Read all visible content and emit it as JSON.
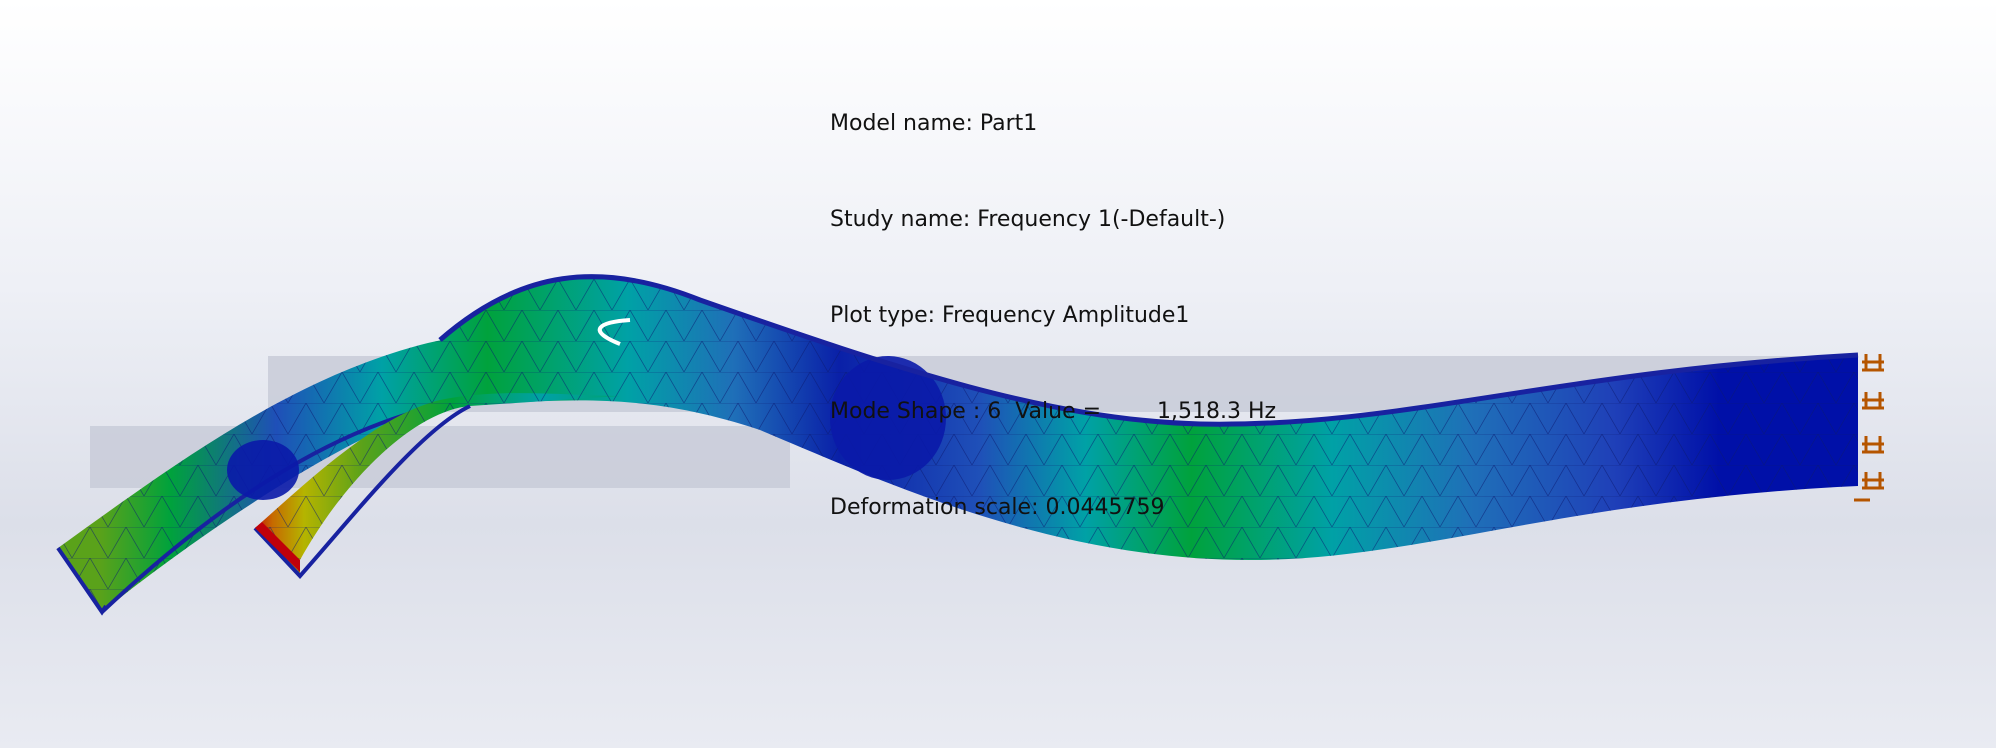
{
  "viewport": {
    "background_top": "#ffffff",
    "background_bottom": "#dcdfe9"
  },
  "info": {
    "model_name": "Model name: Part1",
    "study_name": "Study name: Frequency 1(-Default-)",
    "plot_type": "Plot type: Frequency Amplitude1",
    "mode_shape": "Mode Shape : 6  Value =        1,518.3 Hz",
    "deformation_scale": "Deformation scale: 0.0445759"
  },
  "colors": {
    "max_red": "#c0000a",
    "orange": "#c66a00",
    "yellow": "#b5b400",
    "green": "#00a23c",
    "cyan": "#00a1a6",
    "blue": "#1f4fb8",
    "min_navy": "#0010a8",
    "fixture": "#b55500",
    "undeformed": "#c8cbd8"
  },
  "icons": {
    "fixture": "fixed-geometry-icon"
  }
}
